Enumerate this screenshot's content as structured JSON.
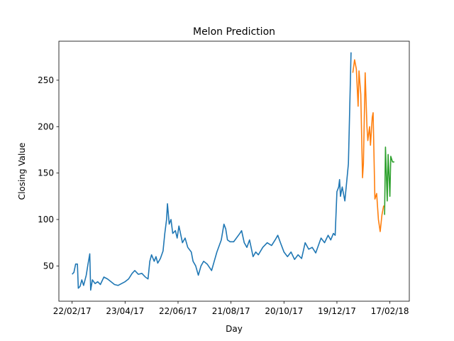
{
  "chart_data": {
    "type": "line",
    "title": "Melon Prediction",
    "xlabel": "Day",
    "ylabel": "Closing Value",
    "xlim": [
      "07/02/17",
      "11/03/18"
    ],
    "xticks": [
      "22/02/17",
      "23/04/17",
      "22/06/17",
      "21/08/17",
      "20/10/17",
      "19/12/17",
      "17/02/18"
    ],
    "ylim": [
      12,
      292
    ],
    "yticks": [
      50,
      100,
      150,
      200,
      250
    ],
    "series": [
      {
        "color": "#1f77b4",
        "x": [
          "22/02/17",
          "24/02/17",
          "26/02/17",
          "28/02/17",
          "01/03/17",
          "03/03/17",
          "05/03/17",
          "07/03/17",
          "10/03/17",
          "12/03/17",
          "14/03/17",
          "15/03/17",
          "17/03/17",
          "20/03/17",
          "23/03/17",
          "26/03/17",
          "30/03/17",
          "03/04/17",
          "07/04/17",
          "11/04/17",
          "15/04/17",
          "19/04/17",
          "23/04/17",
          "27/04/17",
          "01/05/17",
          "04/05/17",
          "08/05/17",
          "12/05/17",
          "16/05/17",
          "19/05/17",
          "21/05/17",
          "23/05/17",
          "26/05/17",
          "28/05/17",
          "30/05/17",
          "02/06/17",
          "05/06/17",
          "07/06/17",
          "09/06/17",
          "10/06/17",
          "12/06/17",
          "14/06/17",
          "16/06/17",
          "19/06/17",
          "21/06/17",
          "23/06/17",
          "27/06/17",
          "30/06/17",
          "03/07/17",
          "07/07/17",
          "09/07/17",
          "12/07/17",
          "15/07/17",
          "18/07/17",
          "21/07/17",
          "25/07/17",
          "30/07/17",
          "02/08/17",
          "05/08/17",
          "10/08/17",
          "13/08/17",
          "15/08/17",
          "17/08/17",
          "20/08/17",
          "24/08/17",
          "31/08/17",
          "02/09/17",
          "05/09/17",
          "08/09/17",
          "11/09/17",
          "15/09/17",
          "18/09/17",
          "21/09/17",
          "26/09/17",
          "01/10/17",
          "06/10/17",
          "10/10/17",
          "13/10/17",
          "16/10/17",
          "20/10/17",
          "24/10/17",
          "28/10/17",
          "01/11/17",
          "05/11/17",
          "09/11/17",
          "13/11/17",
          "17/11/17",
          "21/11/17",
          "25/11/17",
          "01/12/17",
          "05/12/17",
          "09/12/17",
          "12/12/17",
          "15/12/17",
          "17/12/17",
          "19/12/17",
          "21/12/17",
          "22/12/17",
          "23/12/17",
          "25/12/17",
          "28/12/17",
          "30/12/17",
          "01/01/18",
          "02/01/18",
          "04/01/18"
        ],
        "values": [
          41,
          43,
          52,
          52,
          26,
          28,
          35,
          29,
          40,
          52,
          63,
          24,
          35,
          31,
          33,
          30,
          38,
          36,
          33,
          30,
          29,
          31,
          33,
          36,
          42,
          45,
          41,
          42,
          38,
          36,
          55,
          62,
          55,
          60,
          53,
          58,
          66,
          85,
          100,
          117,
          95,
          100,
          85,
          88,
          80,
          93,
          75,
          80,
          70,
          65,
          55,
          50,
          40,
          50,
          55,
          52,
          45,
          55,
          65,
          78,
          95,
          90,
          78,
          76,
          76,
          85,
          88,
          75,
          70,
          78,
          60,
          65,
          62,
          70,
          75,
          72,
          78,
          83,
          75,
          65,
          60,
          65,
          57,
          62,
          58,
          75,
          68,
          70,
          64,
          80,
          75,
          83,
          78,
          85,
          83,
          130,
          135,
          143,
          125,
          135,
          120,
          140,
          160,
          200,
          280
        ]
      },
      {
        "color": "#ff7f0e",
        "x": [
          "06/01/18",
          "08/01/18",
          "10/01/18",
          "12/01/18",
          "13/01/18",
          "15/01/18",
          "17/01/18",
          "18/01/18",
          "20/01/18",
          "22/01/18",
          "23/01/18",
          "25/01/18",
          "26/01/18",
          "28/01/18",
          "29/01/18",
          "31/01/18",
          "02/02/18",
          "04/02/18",
          "06/02/18",
          "08/02/18",
          "10/02/18"
        ],
        "values": [
          258,
          272,
          262,
          222,
          260,
          235,
          145,
          160,
          258,
          200,
          185,
          200,
          180,
          210,
          215,
          122,
          128,
          100,
          87,
          105,
          115
        ]
      },
      {
        "color": "#2ca02c",
        "x": [
          "11/02/18",
          "12/02/18",
          "14/02/18",
          "15/02/18",
          "17/02/18",
          "18/02/18",
          "20/02/18",
          "22/02/18"
        ],
        "values": [
          105,
          178,
          120,
          170,
          125,
          168,
          162,
          162
        ]
      }
    ]
  }
}
